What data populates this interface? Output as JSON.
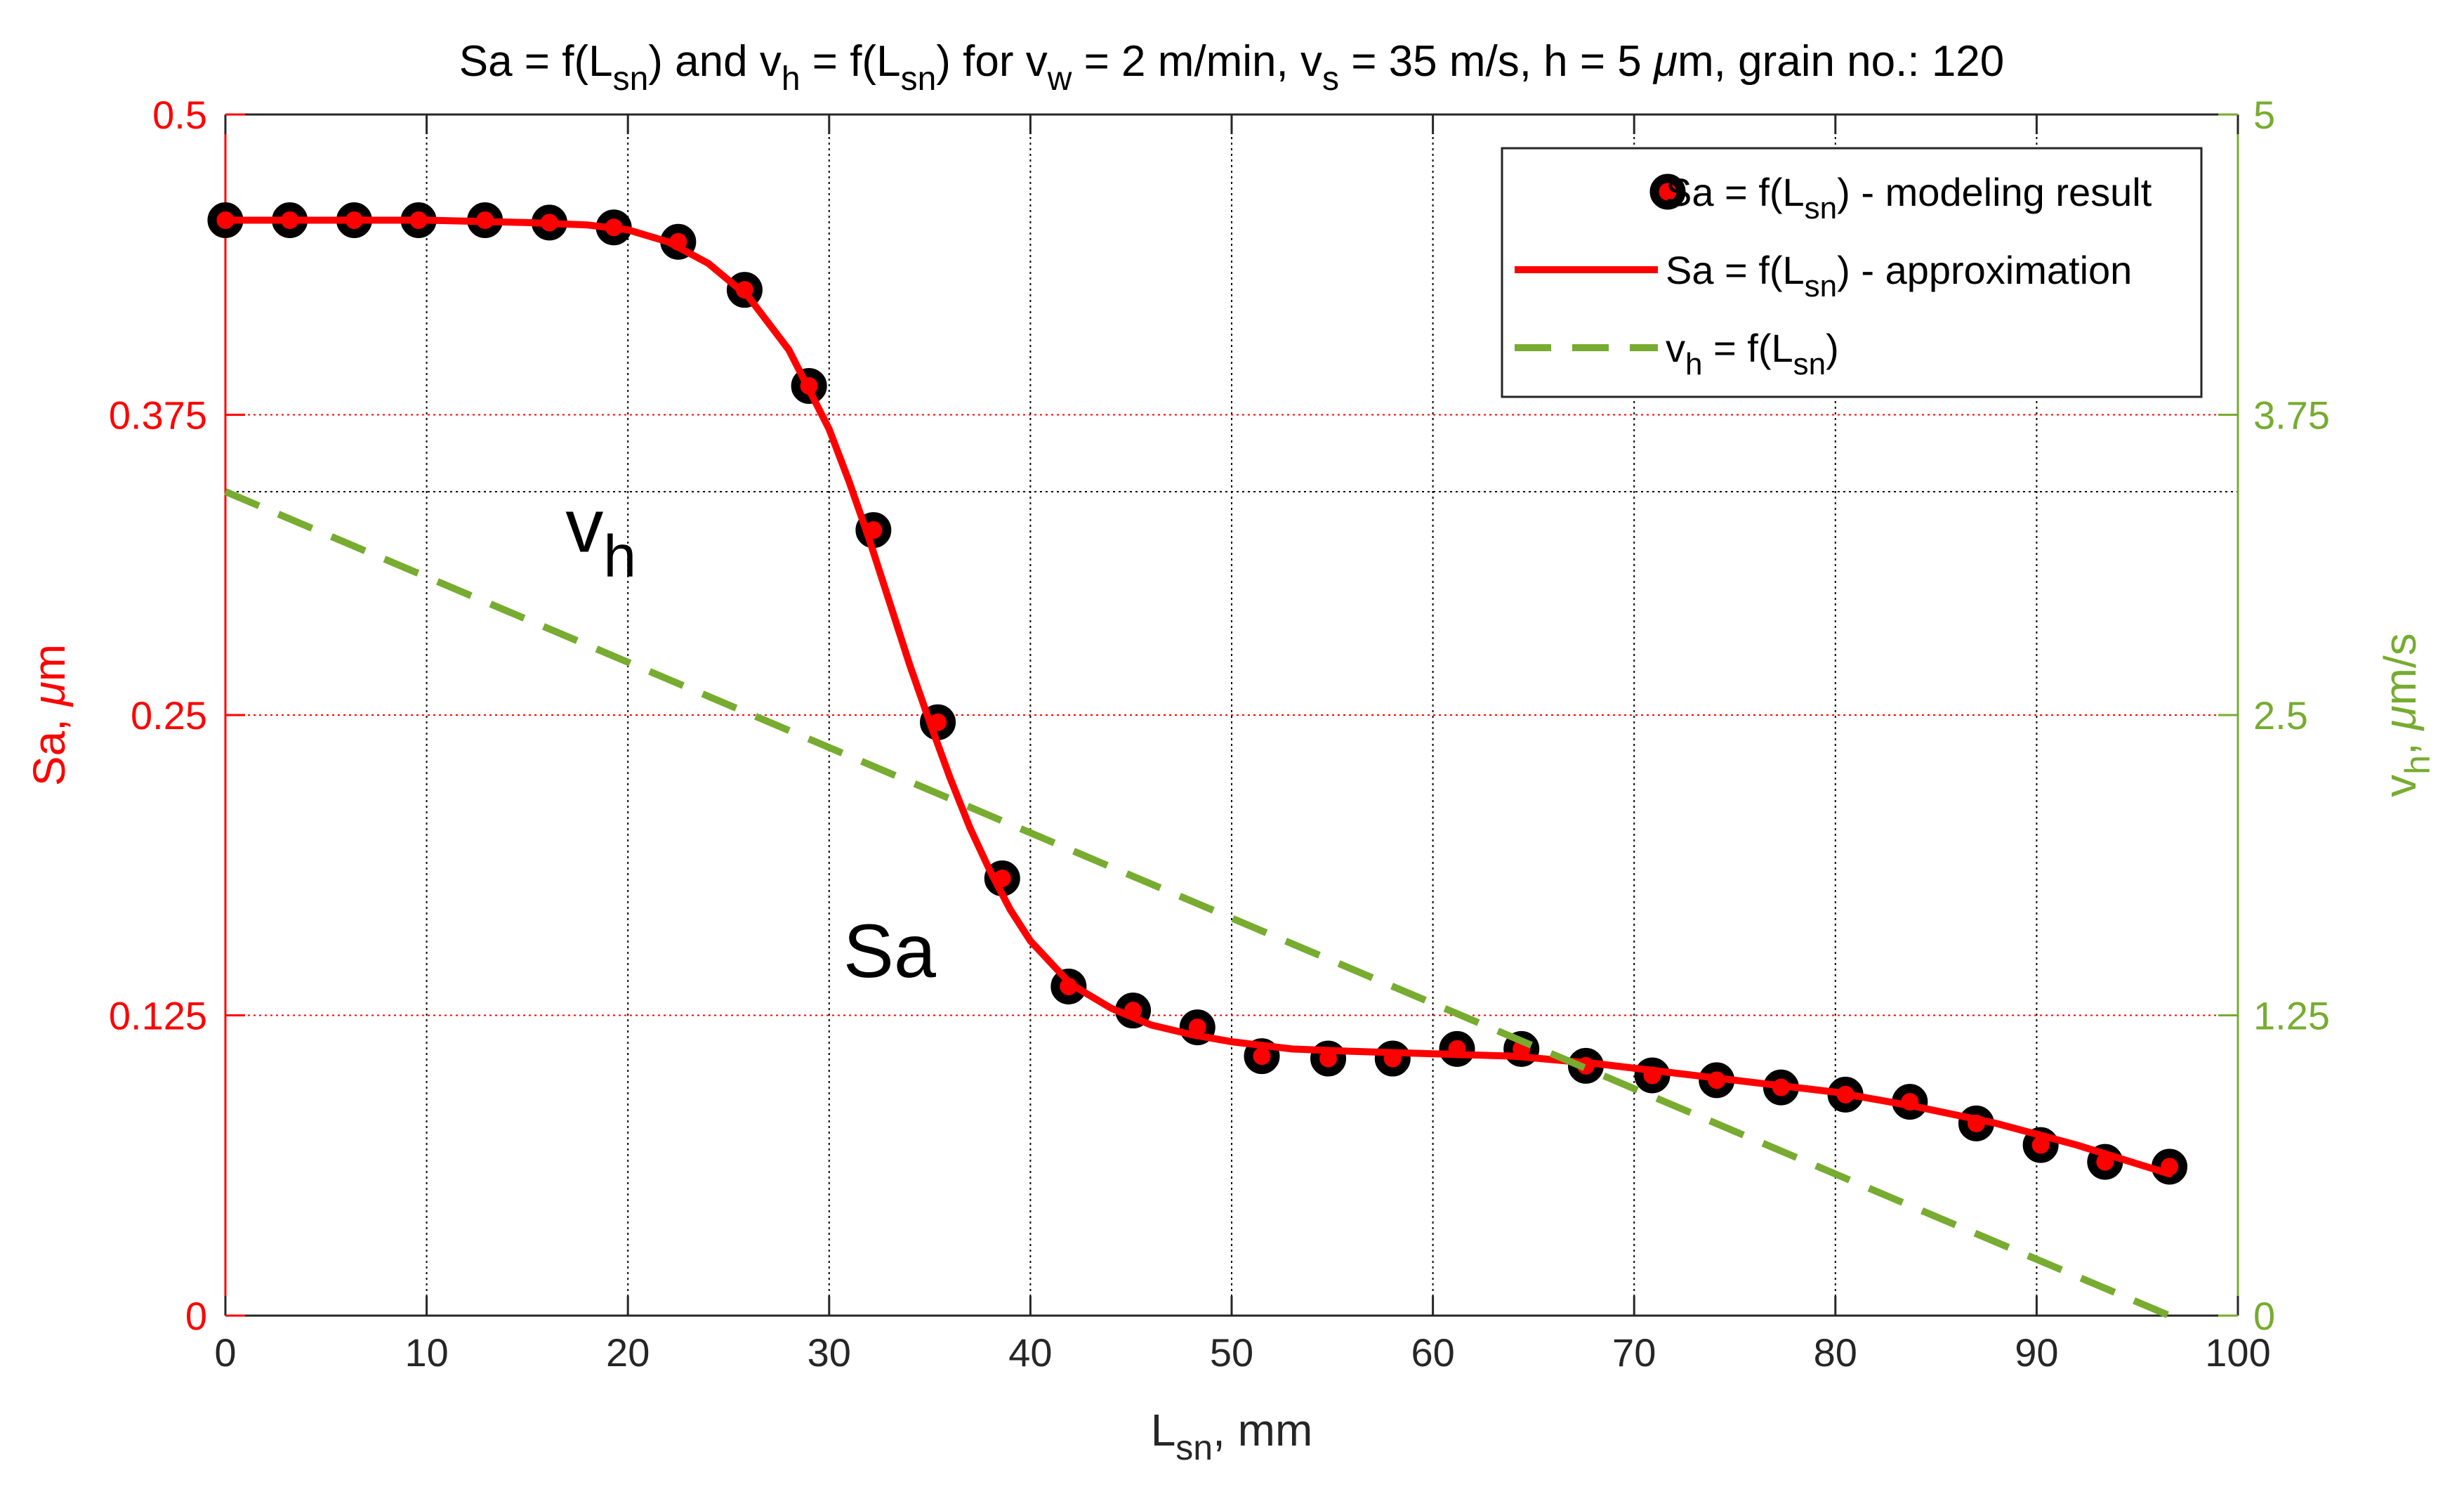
{
  "chart_data": {
    "type": "line",
    "title": {
      "segments": [
        {
          "t": "Sa = f(L"
        },
        {
          "t": "sn",
          "sub": true
        },
        {
          "t": ") and v"
        },
        {
          "t": "h",
          "sub": true
        },
        {
          "t": " = f(L"
        },
        {
          "t": "sn",
          "sub": true
        },
        {
          "t": ") for v"
        },
        {
          "t": "w",
          "sub": true
        },
        {
          "t": " = 2 m/min, v"
        },
        {
          "t": "s",
          "sub": true
        },
        {
          "t": " = 35 m/s, h = 5 "
        },
        {
          "t": "μ",
          "italic": true
        },
        {
          "t": "m, grain no.: 120"
        }
      ]
    },
    "xlabel": {
      "segments": [
        {
          "t": "L"
        },
        {
          "t": "sn",
          "sub": true
        },
        {
          "t": ", mm"
        }
      ]
    },
    "ylabel_left": {
      "segments": [
        {
          "t": "Sa, "
        },
        {
          "t": "μ",
          "italic": true
        },
        {
          "t": "m"
        }
      ]
    },
    "ylabel_right": {
      "segments": [
        {
          "t": "v"
        },
        {
          "t": "h",
          "sub": true
        },
        {
          "t": ", "
        },
        {
          "t": "μ",
          "italic": true
        },
        {
          "t": "m/s"
        }
      ]
    },
    "xlim": [
      0,
      100
    ],
    "ylim_left": [
      0,
      0.5
    ],
    "ylim_right": [
      0,
      5
    ],
    "x_ticks": [
      "0",
      "10",
      "20",
      "30",
      "40",
      "50",
      "60",
      "70",
      "80",
      "90",
      "100"
    ],
    "y_left_ticks": [
      "0",
      "0.125",
      "0.25",
      "0.375",
      "0.5"
    ],
    "y_right_ticks": [
      "0",
      "1.25",
      "2.5",
      "3.75",
      "5"
    ],
    "grid": "on",
    "reference_line_y_left": 0.343,
    "colors": {
      "left_axis": "#ff0000",
      "right_axis": "#77ac30",
      "grid_h": "#ff0000",
      "grid_v": "#000000",
      "marker_edge": "#000000",
      "marker_face": "#ff0000"
    },
    "series": [
      {
        "name": "Sa = f(Lsn) - modeling result",
        "axis": "left",
        "style": "markers",
        "x": [
          0,
          3.2,
          6.4,
          9.6,
          12.9,
          16.1,
          19.3,
          22.5,
          25.8,
          29.0,
          32.2,
          35.4,
          38.6,
          41.9,
          45.1,
          48.3,
          51.5,
          54.8,
          58.0,
          61.2,
          64.4,
          67.6,
          70.9,
          74.1,
          77.3,
          80.5,
          83.7,
          87.0,
          90.2,
          93.4,
          96.6
        ],
        "y": [
          0.456,
          0.456,
          0.456,
          0.456,
          0.456,
          0.455,
          0.453,
          0.447,
          0.427,
          0.387,
          0.327,
          0.247,
          0.182,
          0.137,
          0.127,
          0.12,
          0.108,
          0.107,
          0.107,
          0.111,
          0.111,
          0.104,
          0.1,
          0.098,
          0.095,
          0.092,
          0.089,
          0.08,
          0.071,
          0.064,
          0.062
        ]
      },
      {
        "name": "Sa = f(Lsn) - approximation",
        "axis": "left",
        "style": "solid",
        "x": [
          0,
          5,
          10,
          15,
          18,
          20,
          22,
          24,
          26,
          28,
          30,
          31,
          32,
          33,
          34,
          35,
          36,
          37,
          38,
          39,
          40,
          42,
          44,
          46,
          48,
          50,
          53,
          56,
          60,
          64,
          68,
          72,
          76,
          80,
          84,
          88,
          92,
          96.6
        ],
        "y": [
          0.456,
          0.456,
          0.456,
          0.455,
          0.454,
          0.452,
          0.447,
          0.438,
          0.424,
          0.402,
          0.369,
          0.347,
          0.323,
          0.297,
          0.271,
          0.247,
          0.224,
          0.203,
          0.185,
          0.169,
          0.156,
          0.138,
          0.128,
          0.121,
          0.117,
          0.114,
          0.111,
          0.11,
          0.109,
          0.108,
          0.105,
          0.101,
          0.097,
          0.093,
          0.087,
          0.08,
          0.071,
          0.059
        ]
      },
      {
        "name": "vh = f(Lsn)",
        "axis": "right",
        "style": "dashed",
        "x": [
          0,
          96.6
        ],
        "y": [
          3.43,
          0.0
        ]
      }
    ],
    "legend": {
      "position": "top-right",
      "entries": [
        {
          "style": "markers",
          "segments": [
            {
              "t": "Sa = f(L"
            },
            {
              "t": "sn",
              "sub": true
            },
            {
              "t": ") - modeling result"
            }
          ]
        },
        {
          "style": "solid",
          "segments": [
            {
              "t": "Sa = f(L"
            },
            {
              "t": "sn",
              "sub": true
            },
            {
              "t": ") - approximation"
            }
          ]
        },
        {
          "style": "dashed",
          "segments": [
            {
              "t": "v"
            },
            {
              "t": "h",
              "sub": true
            },
            {
              "t": " = f(L"
            },
            {
              "t": "sn",
              "sub": true
            },
            {
              "t": ")"
            }
          ]
        }
      ]
    },
    "annotations": [
      {
        "segments": [
          {
            "t": "v"
          },
          {
            "t": "h",
            "sub": true
          }
        ],
        "at": [
          16.9,
          0.318
        ]
      },
      {
        "segments": [
          {
            "t": "Sa"
          }
        ],
        "at": [
          30.7,
          0.141
        ]
      }
    ]
  }
}
